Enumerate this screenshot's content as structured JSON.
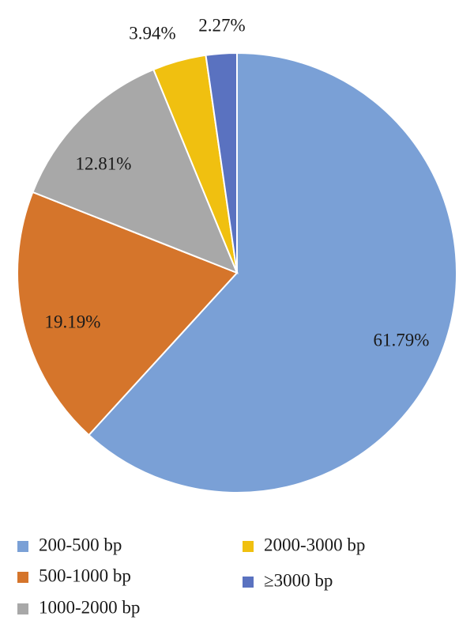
{
  "chart_data": {
    "type": "pie",
    "categories": [
      "200-500 bp",
      "500-1000 bp",
      "1000-2000 bp",
      "2000-3000 bp",
      "≥3000 bp"
    ],
    "values": [
      61.79,
      19.19,
      12.81,
      3.94,
      2.27
    ],
    "labels": [
      "61.79%",
      "19.19%",
      "12.81%",
      "3.94%",
      "2.27%"
    ],
    "colors": [
      "#7aa0d6",
      "#d5752b",
      "#a8a8a8",
      "#f0c010",
      "#5a72c0"
    ],
    "start_angle_deg": 0,
    "direction": "clockwise",
    "legend_position": "bottom"
  }
}
